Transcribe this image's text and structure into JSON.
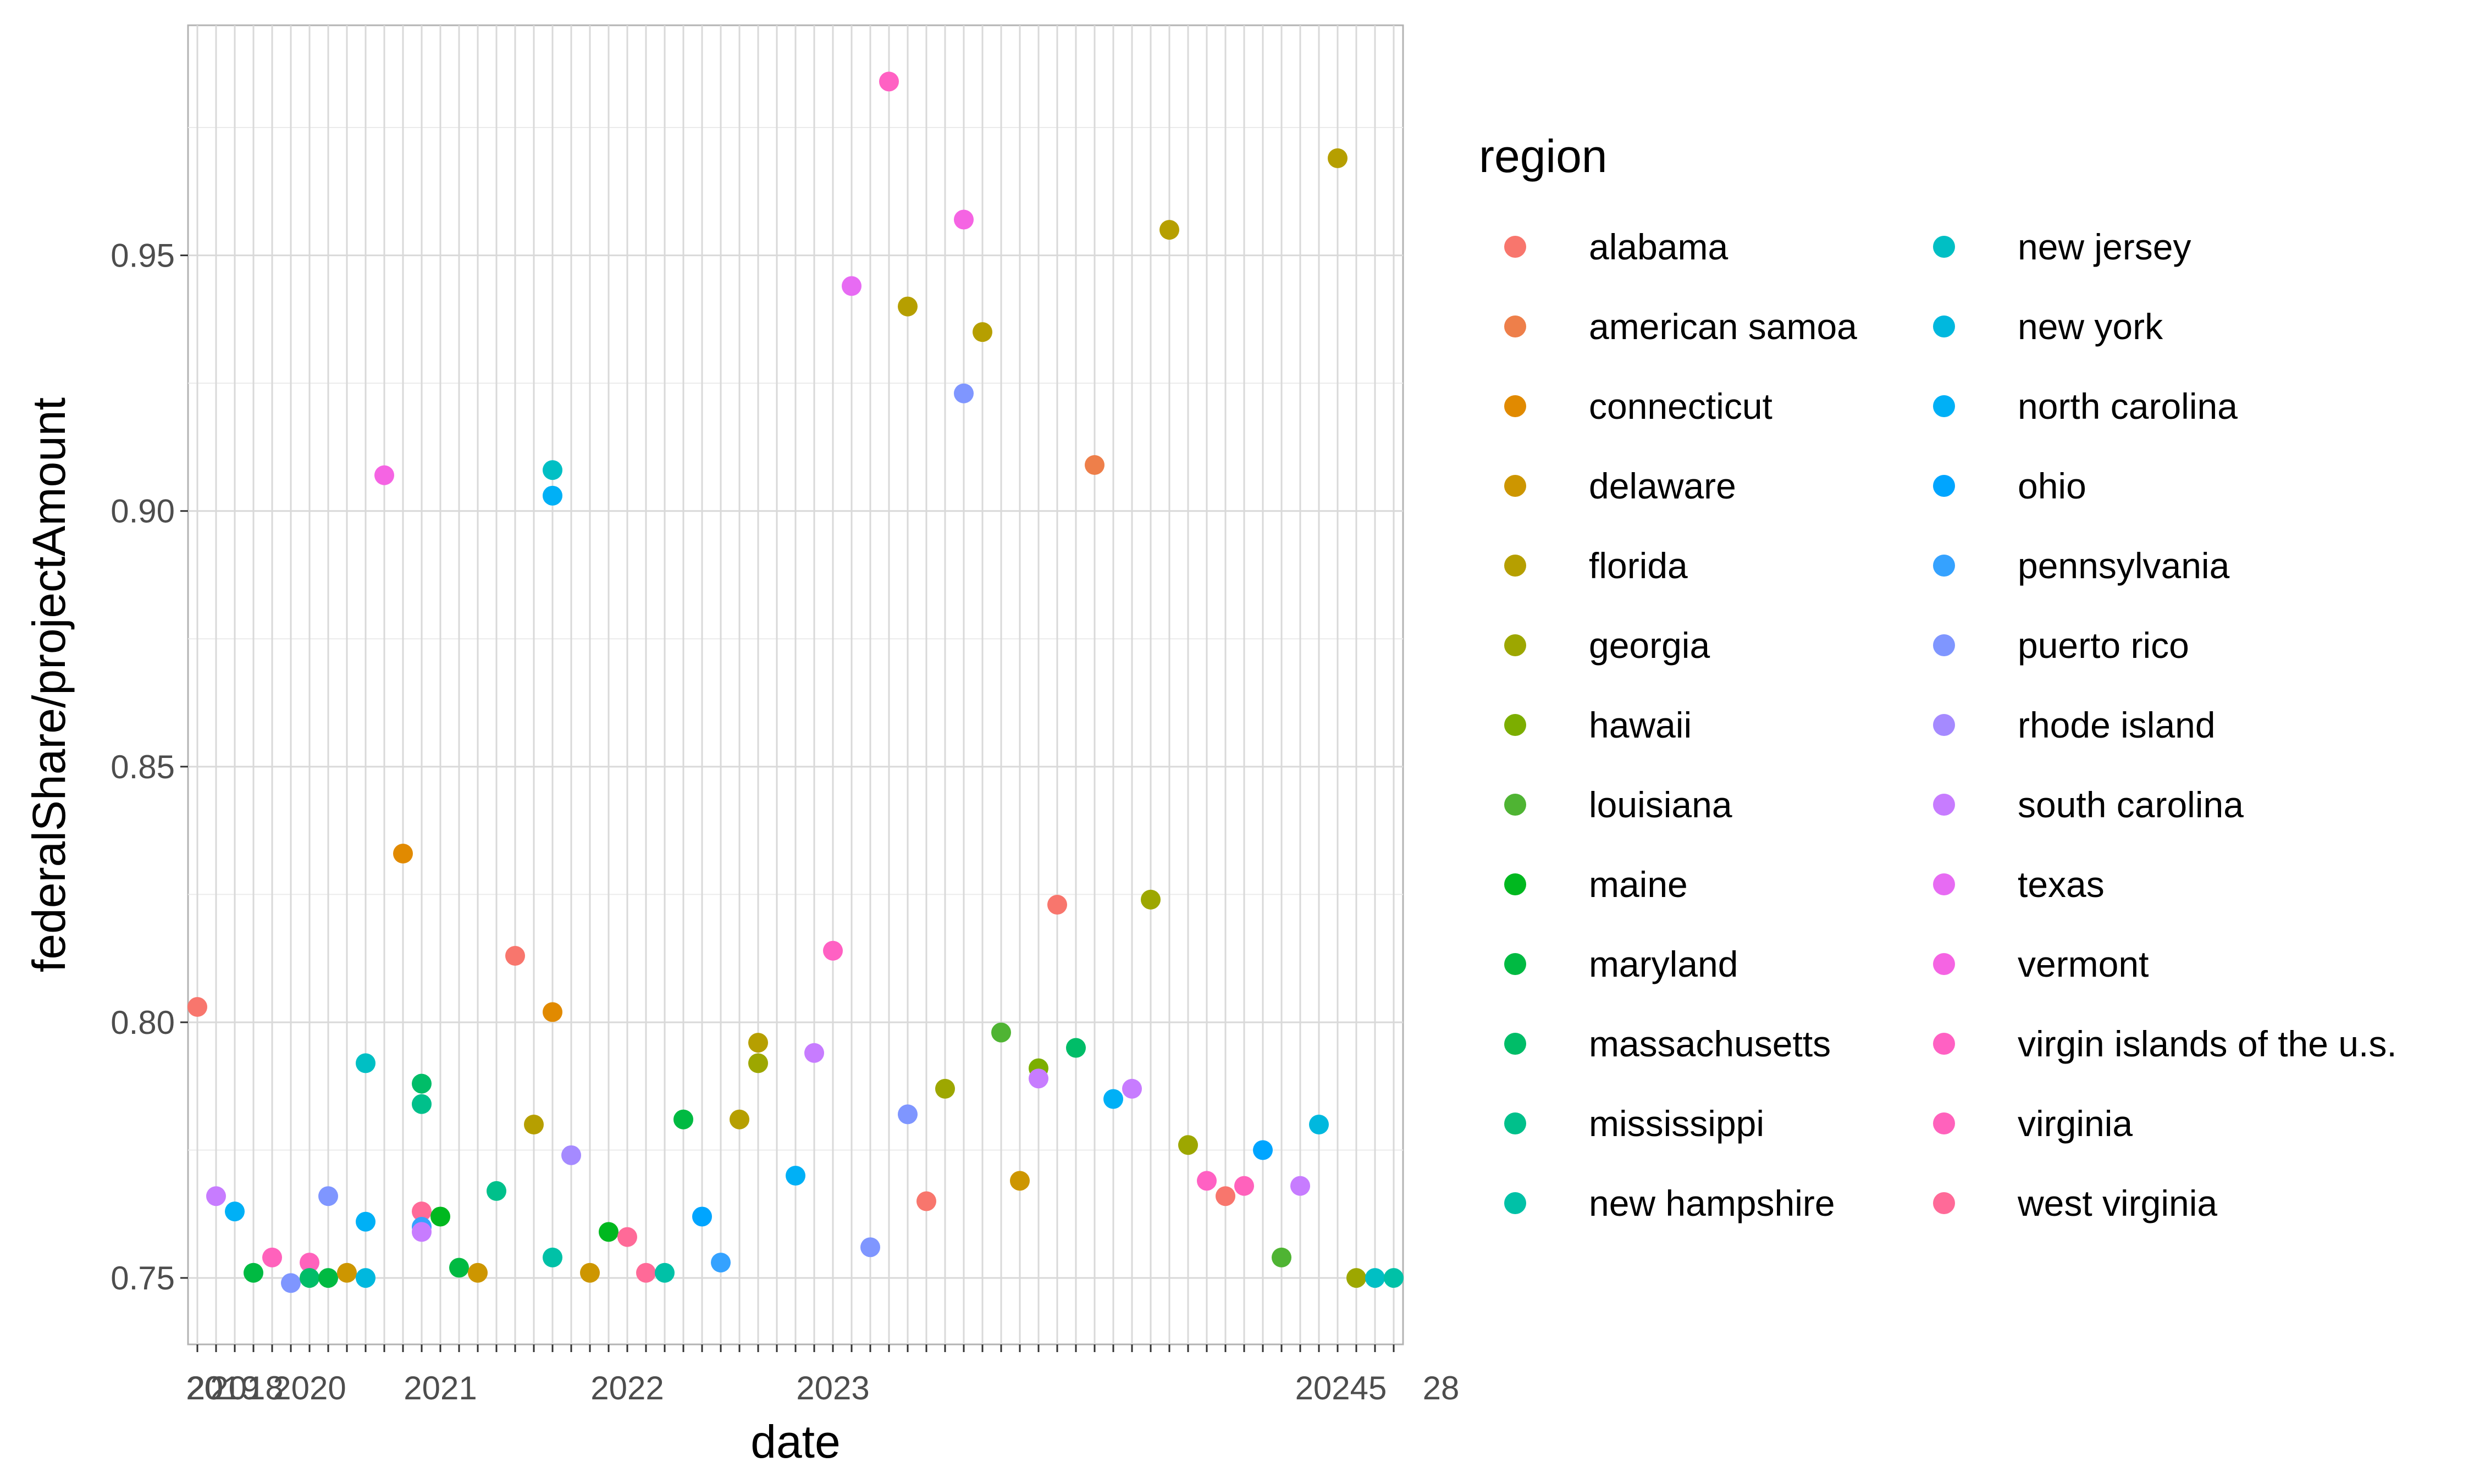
{
  "chart_data": {
    "type": "scatter",
    "xlabel": "date",
    "ylabel": "federalShare/projectAmount",
    "ylim": [
      0.737,
      0.995
    ],
    "y_ticks": [
      "0.75",
      "0.80",
      "0.85",
      "0.90",
      "0.95"
    ],
    "y_tick_values": [
      0.75,
      0.8,
      0.85,
      0.9,
      0.95
    ],
    "x_tick_labels_note": "x-axis tick labels are dense overlapping date strings and are illegible",
    "x_tick_label_fragments": [
      "20",
      "2019",
      "2018",
      "2020",
      "2021",
      "2022",
      "2023",
      "20245",
      "28"
    ],
    "x_categories_count": 65,
    "grid": true,
    "legend": {
      "title": "region",
      "placement": "right",
      "entries": [
        {
          "label": "alabama",
          "color": "#F8766D"
        },
        {
          "label": "american samoa",
          "color": "#EE7F4A"
        },
        {
          "label": "connecticut",
          "color": "#E18A00"
        },
        {
          "label": "delaware",
          "color": "#CD9600"
        },
        {
          "label": "florida",
          "color": "#B69F00"
        },
        {
          "label": "georgia",
          "color": "#9DA700"
        },
        {
          "label": "hawaii",
          "color": "#7CAE00"
        },
        {
          "label": "louisiana",
          "color": "#4FB433"
        },
        {
          "label": "maine",
          "color": "#00B81F"
        },
        {
          "label": "maryland",
          "color": "#00BA42"
        },
        {
          "label": "massachusetts",
          "color": "#00BD68"
        },
        {
          "label": "mississippi",
          "color": "#00C08B"
        },
        {
          "label": "new hampshire",
          "color": "#00C1A7"
        },
        {
          "label": "new jersey",
          "color": "#00BFC4"
        },
        {
          "label": "new york",
          "color": "#00B8DE"
        },
        {
          "label": "north carolina",
          "color": "#00B0F6"
        },
        {
          "label": "ohio",
          "color": "#00A5FF"
        },
        {
          "label": "pennsylvania",
          "color": "#35A2FF"
        },
        {
          "label": "puerto rico",
          "color": "#7F96FF"
        },
        {
          "label": "rhode island",
          "color": "#A58AFF"
        },
        {
          "label": "south carolina",
          "color": "#C77CFF"
        },
        {
          "label": "texas",
          "color": "#E76BF3"
        },
        {
          "label": "vermont",
          "color": "#F564E3"
        },
        {
          "label": "virgin islands of the u.s.",
          "color": "#FF61C3"
        },
        {
          "label": "virginia",
          "color": "#FF62BC"
        },
        {
          "label": "west virginia",
          "color": "#FF6A98"
        }
      ]
    },
    "points": [
      {
        "x": 1,
        "y": 0.803,
        "region": "alabama"
      },
      {
        "x": 2,
        "y": 0.766,
        "region": "south carolina"
      },
      {
        "x": 3,
        "y": 0.763,
        "region": "north carolina"
      },
      {
        "x": 4,
        "y": 0.751,
        "region": "maryland"
      },
      {
        "x": 5,
        "y": 0.754,
        "region": "virginia"
      },
      {
        "x": 6,
        "y": 0.749,
        "region": "puerto rico"
      },
      {
        "x": 7,
        "y": 0.753,
        "region": "virginia"
      },
      {
        "x": 7,
        "y": 0.75,
        "region": "massachusetts"
      },
      {
        "x": 8,
        "y": 0.766,
        "region": "puerto rico"
      },
      {
        "x": 8,
        "y": 0.75,
        "region": "maryland"
      },
      {
        "x": 9,
        "y": 0.751,
        "region": "delaware"
      },
      {
        "x": 10,
        "y": 0.792,
        "region": "new jersey"
      },
      {
        "x": 10,
        "y": 0.761,
        "region": "north carolina"
      },
      {
        "x": 10,
        "y": 0.75,
        "region": "new york"
      },
      {
        "x": 11,
        "y": 0.907,
        "region": "vermont"
      },
      {
        "x": 12,
        "y": 0.833,
        "region": "connecticut"
      },
      {
        "x": 13,
        "y": 0.788,
        "region": "massachusetts"
      },
      {
        "x": 13,
        "y": 0.784,
        "region": "mississippi"
      },
      {
        "x": 13,
        "y": 0.763,
        "region": "west virginia"
      },
      {
        "x": 13,
        "y": 0.76,
        "region": "pennsylvania"
      },
      {
        "x": 13,
        "y": 0.759,
        "region": "south carolina"
      },
      {
        "x": 14,
        "y": 0.762,
        "region": "maine"
      },
      {
        "x": 15,
        "y": 0.752,
        "region": "maryland"
      },
      {
        "x": 16,
        "y": 0.751,
        "region": "delaware"
      },
      {
        "x": 17,
        "y": 0.767,
        "region": "mississippi"
      },
      {
        "x": 18,
        "y": 0.813,
        "region": "alabama"
      },
      {
        "x": 19,
        "y": 0.78,
        "region": "florida"
      },
      {
        "x": 20,
        "y": 0.908,
        "region": "new jersey"
      },
      {
        "x": 20,
        "y": 0.903,
        "region": "north carolina"
      },
      {
        "x": 20,
        "y": 0.802,
        "region": "connecticut"
      },
      {
        "x": 20,
        "y": 0.754,
        "region": "new hampshire"
      },
      {
        "x": 21,
        "y": 0.774,
        "region": "rhode island"
      },
      {
        "x": 22,
        "y": 0.751,
        "region": "delaware"
      },
      {
        "x": 23,
        "y": 0.759,
        "region": "maine"
      },
      {
        "x": 24,
        "y": 0.758,
        "region": "west virginia"
      },
      {
        "x": 25,
        "y": 0.751,
        "region": "west virginia"
      },
      {
        "x": 26,
        "y": 0.751,
        "region": "new hampshire"
      },
      {
        "x": 27,
        "y": 0.781,
        "region": "maryland"
      },
      {
        "x": 28,
        "y": 0.762,
        "region": "ohio"
      },
      {
        "x": 29,
        "y": 0.753,
        "region": "pennsylvania"
      },
      {
        "x": 30,
        "y": 0.781,
        "region": "florida"
      },
      {
        "x": 31,
        "y": 0.796,
        "region": "florida"
      },
      {
        "x": 31,
        "y": 0.792,
        "region": "georgia"
      },
      {
        "x": 33,
        "y": 0.77,
        "region": "north carolina"
      },
      {
        "x": 34,
        "y": 0.794,
        "region": "south carolina"
      },
      {
        "x": 35,
        "y": 0.814,
        "region": "virgin islands of the u.s."
      },
      {
        "x": 36,
        "y": 0.944,
        "region": "texas"
      },
      {
        "x": 37,
        "y": 0.756,
        "region": "puerto rico"
      },
      {
        "x": 38,
        "y": 0.984,
        "region": "virgin islands of the u.s."
      },
      {
        "x": 39,
        "y": 0.94,
        "region": "florida"
      },
      {
        "x": 39,
        "y": 0.782,
        "region": "puerto rico"
      },
      {
        "x": 40,
        "y": 0.765,
        "region": "alabama"
      },
      {
        "x": 41,
        "y": 0.787,
        "region": "georgia"
      },
      {
        "x": 42,
        "y": 0.957,
        "region": "vermont"
      },
      {
        "x": 42,
        "y": 0.923,
        "region": "puerto rico"
      },
      {
        "x": 43,
        "y": 0.935,
        "region": "florida"
      },
      {
        "x": 44,
        "y": 0.798,
        "region": "louisiana"
      },
      {
        "x": 45,
        "y": 0.769,
        "region": "delaware"
      },
      {
        "x": 46,
        "y": 0.791,
        "region": "hawaii"
      },
      {
        "x": 46,
        "y": 0.789,
        "region": "south carolina"
      },
      {
        "x": 47,
        "y": 0.823,
        "region": "alabama"
      },
      {
        "x": 48,
        "y": 0.795,
        "region": "massachusetts"
      },
      {
        "x": 49,
        "y": 0.909,
        "region": "american samoa"
      },
      {
        "x": 50,
        "y": 0.785,
        "region": "north carolina"
      },
      {
        "x": 51,
        "y": 0.787,
        "region": "south carolina"
      },
      {
        "x": 52,
        "y": 0.824,
        "region": "georgia"
      },
      {
        "x": 53,
        "y": 0.955,
        "region": "florida"
      },
      {
        "x": 54,
        "y": 0.776,
        "region": "georgia"
      },
      {
        "x": 55,
        "y": 0.769,
        "region": "virgin islands of the u.s."
      },
      {
        "x": 56,
        "y": 0.766,
        "region": "alabama"
      },
      {
        "x": 57,
        "y": 0.768,
        "region": "virginia"
      },
      {
        "x": 58,
        "y": 0.775,
        "region": "ohio"
      },
      {
        "x": 59,
        "y": 0.754,
        "region": "louisiana"
      },
      {
        "x": 60,
        "y": 0.768,
        "region": "south carolina"
      },
      {
        "x": 61,
        "y": 0.78,
        "region": "new york"
      },
      {
        "x": 62,
        "y": 0.969,
        "region": "florida"
      },
      {
        "x": 63,
        "y": 0.75,
        "region": "georgia"
      },
      {
        "x": 64,
        "y": 0.75,
        "region": "new jersey"
      },
      {
        "x": 65,
        "y": 0.75,
        "region": "new hampshire"
      }
    ]
  }
}
